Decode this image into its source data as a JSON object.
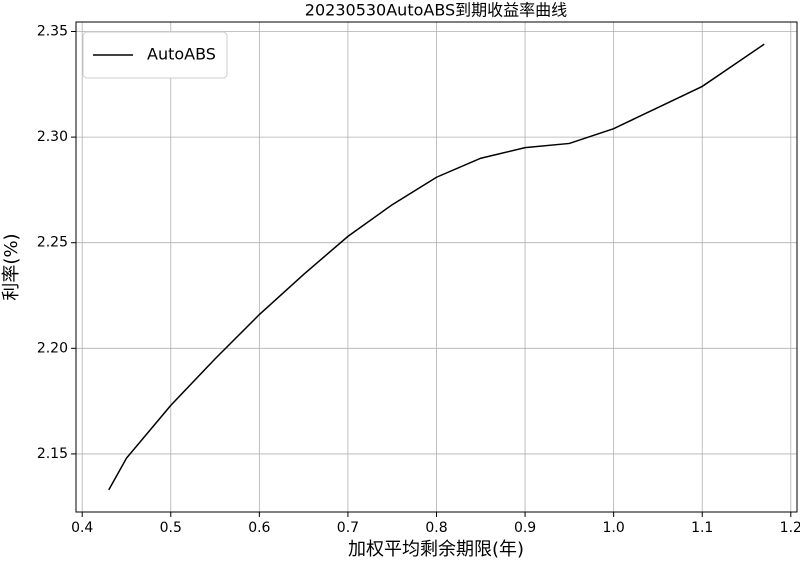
{
  "chart_data": {
    "type": "line",
    "title": "20230530AutoABS到期收益率曲线",
    "x_label": "加权平均剩余期限(年)",
    "y_label": "利率(%)",
    "x": [
      0.43,
      0.45,
      0.5,
      0.55,
      0.6,
      0.65,
      0.7,
      0.75,
      0.8,
      0.85,
      0.9,
      0.95,
      1.0,
      1.05,
      1.1,
      1.17
    ],
    "series": [
      {
        "name": "AutoABS",
        "color": "#000000",
        "values": [
          2.133,
          2.148,
          2.173,
          2.195,
          2.216,
          2.235,
          2.253,
          2.268,
          2.281,
          2.29,
          2.295,
          2.297,
          2.304,
          2.314,
          2.324,
          2.344
        ]
      }
    ],
    "xlim": [
      0.393,
      1.207
    ],
    "ylim": [
      2.1225,
      2.3545
    ],
    "xticks": [
      0.4,
      0.5,
      0.6,
      0.7,
      0.8,
      0.9,
      {
        "value": 1,
        "label": "1.0"
      },
      1.1,
      1.2
    ],
    "yticks": [
      2.15,
      {
        "value": 2.2,
        "label": "2.20"
      },
      2.25,
      {
        "value": 2.3,
        "label": "2.30"
      },
      2.35
    ],
    "grid": true,
    "legend": "upper-left"
  }
}
